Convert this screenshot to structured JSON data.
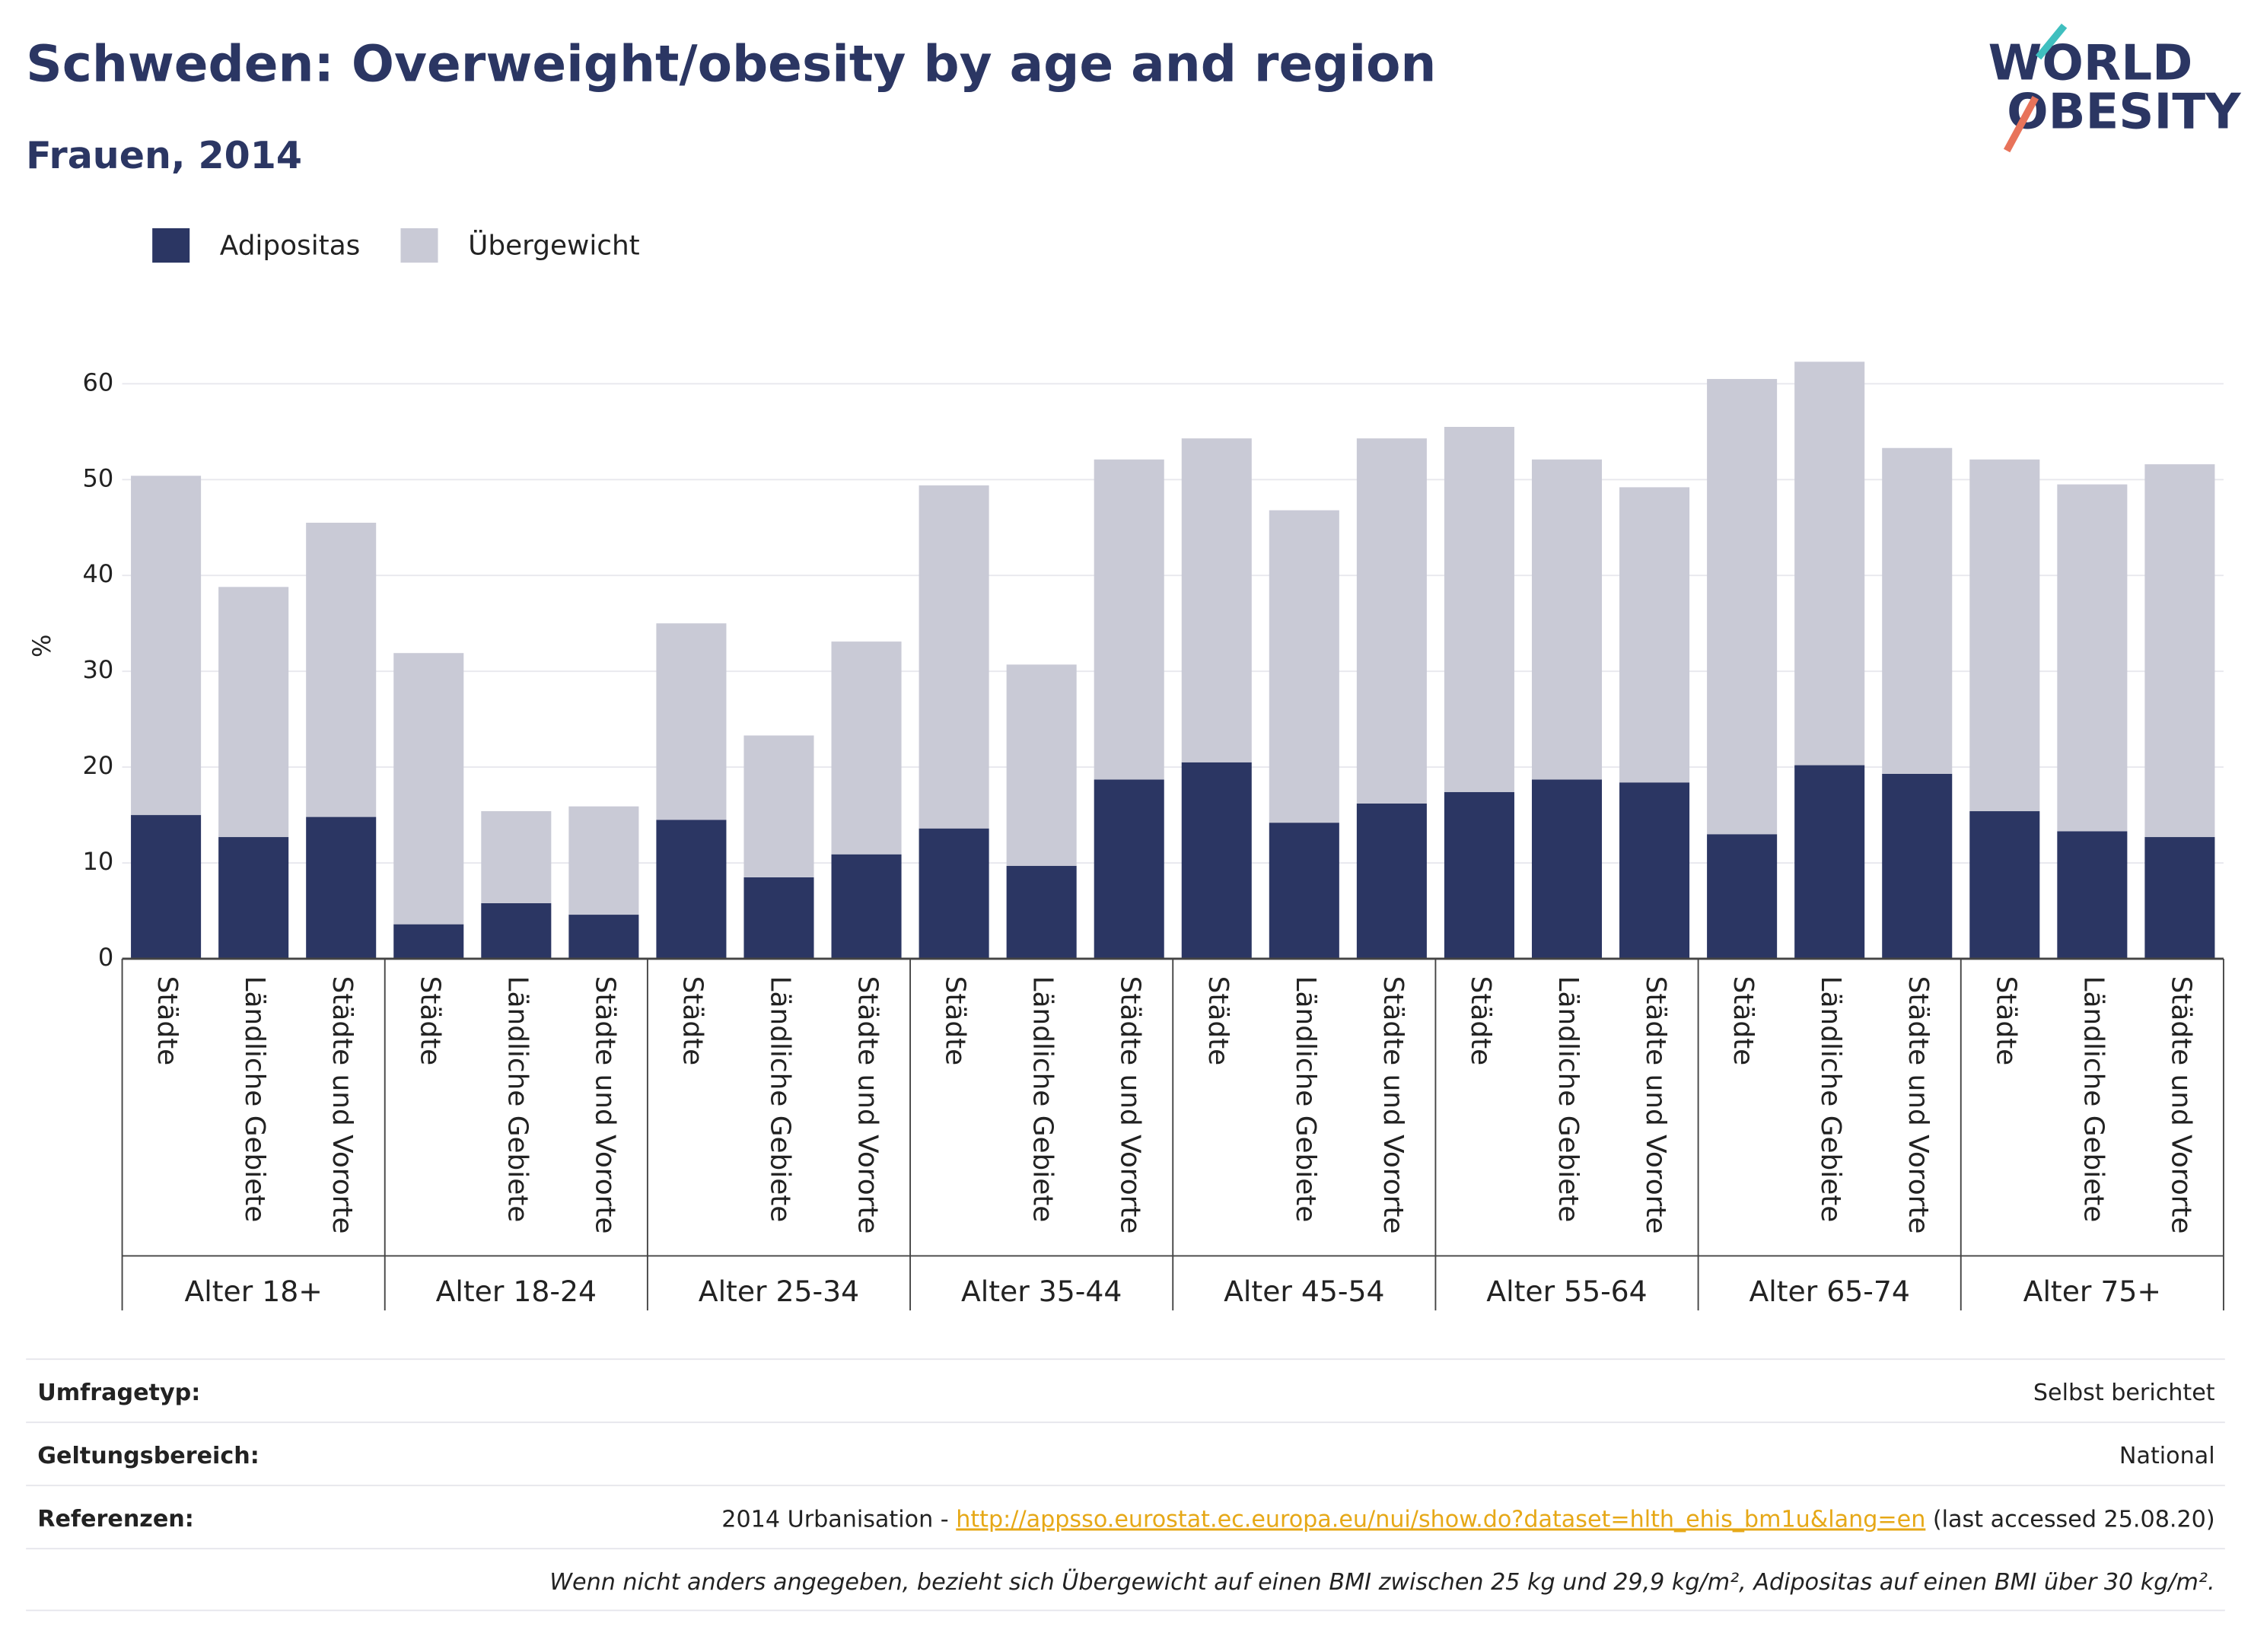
{
  "chart_data": {
    "type": "stacked-bar",
    "title": "Schweden: Overweight/obesity by age and region",
    "subtitle": "Frauen, 2014",
    "y_label": "%",
    "categories": [
      "Städte",
      "Ländliche Gebiete",
      "Städte und Vororte",
      "Städte",
      "Ländliche Gebiete",
      "Städte und Vororte",
      "Städte",
      "Ländliche Gebiete",
      "Städte und Vororte",
      "Städte",
      "Ländliche Gebiete",
      "Städte und Vororte",
      "Städte",
      "Ländliche Gebiete",
      "Städte und Vororte",
      "Städte",
      "Ländliche Gebiete",
      "Städte und Vororte",
      "Städte",
      "Ländliche Gebiete",
      "Städte und Vororte",
      "Städte",
      "Ländliche Gebiete",
      "Städte und Vororte"
    ],
    "groups": [
      "Alter 18+",
      "Alter 18-24",
      "Alter 25-34",
      "Alter 35-44",
      "Alter 45-54",
      "Alter 55-64",
      "Alter 65-74",
      "Alter 75+"
    ],
    "series": [
      {
        "name": "Adipositas",
        "color": "#2b3663",
        "values": [
          15.0,
          12.7,
          14.8,
          3.6,
          5.8,
          4.6,
          14.5,
          8.5,
          10.9,
          13.6,
          9.7,
          18.7,
          20.5,
          14.2,
          16.2,
          17.4,
          18.7,
          18.4,
          13.0,
          20.2,
          19.3,
          15.4,
          13.3,
          12.7
        ]
      },
      {
        "name": "Übergewicht",
        "color": "#c9cad6",
        "values": [
          35.4,
          26.1,
          30.7,
          28.3,
          9.6,
          11.3,
          20.5,
          14.8,
          22.2,
          35.8,
          21.0,
          33.4,
          33.8,
          32.6,
          38.1,
          38.1,
          33.4,
          30.8,
          47.5,
          42.1,
          34.0,
          36.7,
          36.2,
          38.9
        ]
      }
    ],
    "ylim": [
      0,
      65
    ],
    "yticks": [
      0,
      10,
      20,
      30,
      40,
      50,
      60
    ],
    "grid": true
  },
  "logo": {
    "line1": "WORLD",
    "line2": "OBESITY"
  },
  "footer": {
    "rows": [
      {
        "label": "Umfragetyp:",
        "value": "Selbst berichtet"
      },
      {
        "label": "Geltungsbereich:",
        "value": "National"
      }
    ],
    "references": {
      "label": "Referenzen:",
      "prefix": "2014 Urbanisation - ",
      "link": "http://appsso.eurostat.ec.europa.eu/nui/show.do?dataset=hlth_ehis_bm1u&lang=en",
      "suffix": " (last accessed 25.08.20)"
    },
    "note": "Wenn nicht anders angegeben, bezieht sich Übergewicht auf einen BMI zwischen 25 kg und 29,9 kg/m², Adipositas auf einen BMI über 30 kg/m²."
  }
}
